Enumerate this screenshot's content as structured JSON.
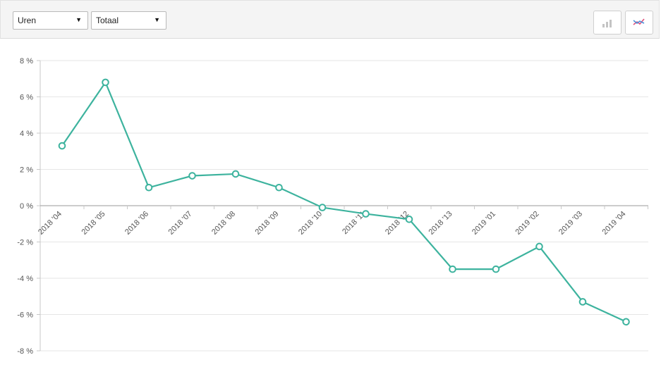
{
  "toolbar": {
    "metric_select": "Uren",
    "aggregate_select": "Totaal",
    "bar_chart_button": "bar-chart-icon",
    "line_chart_button": "line-chart-icon"
  },
  "colors": {
    "series": "#3db39e",
    "grid": "#e6e6e6",
    "axis": "#c8c8c8",
    "bar_icon": "#c0c0c0",
    "line_icon_a": "#e04e7a",
    "line_icon_b": "#4a90d9"
  },
  "chart_data": {
    "type": "line",
    "categories": [
      "2018 '04",
      "2018 '05",
      "2018 '06",
      "2018 '07",
      "2018 '08",
      "2018 '09",
      "2018 '10",
      "2018 '11",
      "2018 '12",
      "2018 '13",
      "2019 '01",
      "2019 '02",
      "2019 '03",
      "2019 '04"
    ],
    "series": [
      {
        "values": [
          3.3,
          6.8,
          1.0,
          1.65,
          1.75,
          1.0,
          -0.1,
          -0.45,
          -0.75,
          -3.5,
          -3.5,
          -2.25,
          -5.3,
          -6.4
        ]
      }
    ],
    "y_ticks": [
      "8 %",
      "6 %",
      "4 %",
      "2 %",
      "0 %",
      "-2 %",
      "-4 %",
      "-6 %",
      "-8 %"
    ],
    "y_tick_values": [
      8,
      6,
      4,
      2,
      0,
      -2,
      -4,
      -6,
      -8
    ],
    "ylim": [
      -8,
      8
    ],
    "grid": true,
    "legend": "none"
  }
}
